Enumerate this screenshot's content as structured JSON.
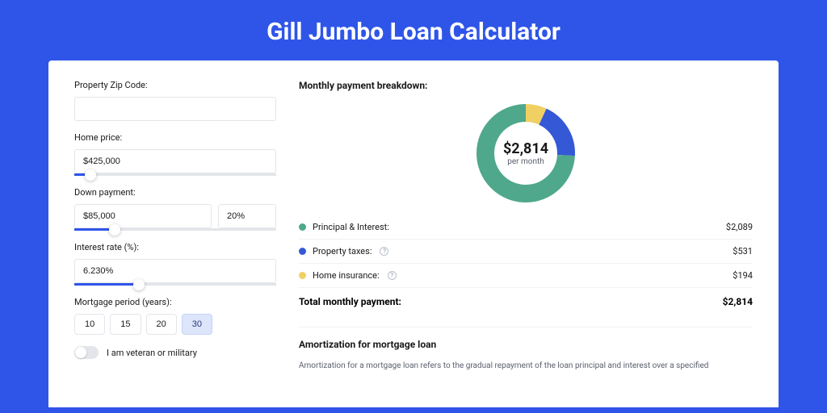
{
  "page": {
    "title": "Gill Jumbo Loan Calculator",
    "background_color": "#2f55e8",
    "card_background": "#ffffff"
  },
  "form": {
    "zip": {
      "label": "Property Zip Code:",
      "value": ""
    },
    "home_price": {
      "label": "Home price:",
      "value": "$425,000",
      "slider_pct": 8
    },
    "down_payment": {
      "label": "Down payment:",
      "amount": "$85,000",
      "percent": "20%",
      "slider_pct": 20
    },
    "interest_rate": {
      "label": "Interest rate (%):",
      "value": "6.230%",
      "slider_pct": 32
    },
    "period": {
      "label": "Mortgage period (years):",
      "options": [
        "10",
        "15",
        "20",
        "30"
      ],
      "selected": "30"
    },
    "veteran_toggle": {
      "label": "I am veteran or military",
      "on": false
    }
  },
  "breakdown": {
    "title": "Monthly payment breakdown:",
    "center_amount": "$2,814",
    "center_sub": "per month",
    "donut": {
      "radius": 50,
      "stroke_width": 22,
      "slices": [
        {
          "label": "Principal & Interest:",
          "value": "$2,089",
          "fraction": 0.742,
          "color": "#4fa88c"
        },
        {
          "label": "Property taxes:",
          "value": "$531",
          "fraction": 0.189,
          "color": "#3458d6",
          "info": true
        },
        {
          "label": "Home insurance:",
          "value": "$194",
          "fraction": 0.069,
          "color": "#f0cf63",
          "info": true
        }
      ]
    },
    "total_label": "Total monthly payment:",
    "total_value": "$2,814"
  },
  "amortization": {
    "title": "Amortization for mortgage loan",
    "text": "Amortization for a mortgage loan refers to the gradual repayment of the loan principal and interest over a specified"
  }
}
